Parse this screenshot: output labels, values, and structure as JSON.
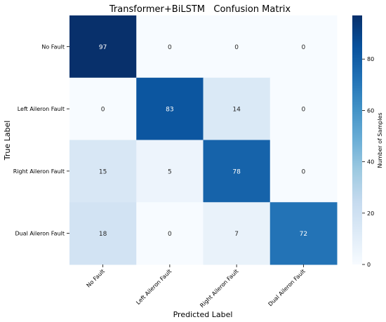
{
  "chart_data": {
    "type": "heatmap",
    "title": "Transformer+BiLSTM   Confusion Matrix",
    "xlabel": "Predicted Label",
    "ylabel": "True Label",
    "row_labels": [
      "No Fault",
      "Left Aileron Fault",
      "Right Aileron Fault",
      "Dual Aileron Fault"
    ],
    "col_labels": [
      "No Fault",
      "Left Aileron Fault",
      "Right Aileron Fault",
      "Dual Aileron Fault"
    ],
    "values": [
      [
        97,
        0,
        0,
        0
      ],
      [
        0,
        83,
        14,
        0
      ],
      [
        15,
        5,
        78,
        0
      ],
      [
        18,
        0,
        7,
        72
      ]
    ],
    "colormap": "Blues",
    "colorbar": {
      "label": "Number of Samples",
      "range": [
        0,
        97
      ],
      "ticks": [
        0,
        20,
        40,
        60,
        80
      ]
    }
  }
}
